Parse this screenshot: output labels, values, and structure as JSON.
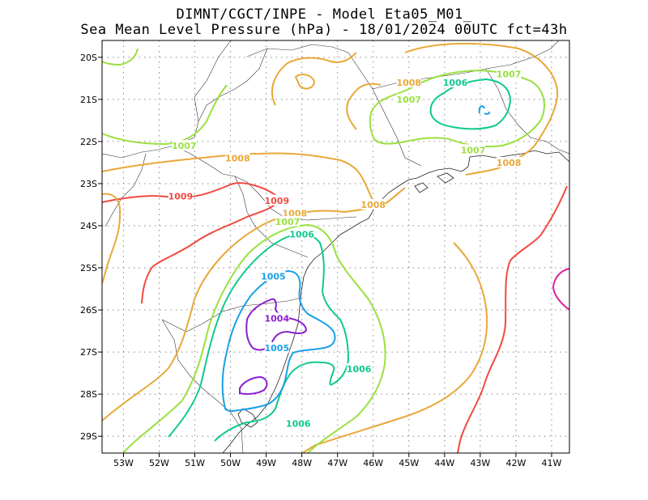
{
  "chart_data": {
    "type": "contour",
    "title": "DIMNT/CGCT/INPE -  Model Eta05_M01_",
    "subtitle": "Sea Mean Level Pressure (hPa) - 18/01/2024 00UTC fct=43h",
    "xlim": [
      -53.6,
      -40.5
    ],
    "ylim": [
      -29.4,
      -19.6
    ],
    "x_ticks": [
      -53,
      -52,
      -51,
      -50,
      -49,
      -48,
      -47,
      -46,
      -45,
      -44,
      -43,
      -42,
      -41
    ],
    "x_tick_labels": [
      "53W",
      "52W",
      "51W",
      "50W",
      "49W",
      "48W",
      "47W",
      "46W",
      "45W",
      "44W",
      "43W",
      "42W",
      "41W"
    ],
    "y_ticks": [
      -20,
      -21,
      -22,
      -23,
      -24,
      -25,
      -26,
      -27,
      -28,
      -29
    ],
    "y_tick_labels": [
      "20S",
      "21S",
      "22S",
      "23S",
      "24S",
      "25S",
      "26S",
      "27S",
      "28S",
      "29S"
    ],
    "grid": true,
    "colors": {
      "1004": "#8a1fd0",
      "1005": "#1aa0e8",
      "1006": "#10c890",
      "1007": "#9ae040",
      "1008": "#e8a838",
      "1009": "#f04a40",
      "1010": "#e0209a"
    },
    "contour_labels": [
      {
        "value": "1008",
        "lon": -45.0,
        "lat": -20.6
      },
      {
        "value": "1006",
        "lon": -43.7,
        "lat": -20.6
      },
      {
        "value": "1007",
        "lon": -42.2,
        "lat": -20.4
      },
      {
        "value": "1007",
        "lon": -45.0,
        "lat": -21.0
      },
      {
        "value": "1007",
        "lon": -43.2,
        "lat": -22.2
      },
      {
        "value": "1007",
        "lon": -51.3,
        "lat": -22.1
      },
      {
        "value": "1008",
        "lon": -49.8,
        "lat": -22.4
      },
      {
        "value": "1008",
        "lon": -42.2,
        "lat": -22.5
      },
      {
        "value": "1009",
        "lon": -51.4,
        "lat": -23.3
      },
      {
        "value": "1009",
        "lon": -48.7,
        "lat": -23.4
      },
      {
        "value": "1008",
        "lon": -46.0,
        "lat": -23.5
      },
      {
        "value": "1008",
        "lon": -48.2,
        "lat": -23.7
      },
      {
        "value": "1007",
        "lon": -48.4,
        "lat": -23.9
      },
      {
        "value": "1006",
        "lon": -48.0,
        "lat": -24.2
      },
      {
        "value": "1005",
        "lon": -48.8,
        "lat": -25.2
      },
      {
        "value": "1004",
        "lon": -48.7,
        "lat": -26.2
      },
      {
        "value": "1005",
        "lon": -48.7,
        "lat": -26.9
      },
      {
        "value": "1006",
        "lon": -46.4,
        "lat": -27.4
      },
      {
        "value": "1006",
        "lon": -48.1,
        "lat": -28.7
      }
    ]
  }
}
